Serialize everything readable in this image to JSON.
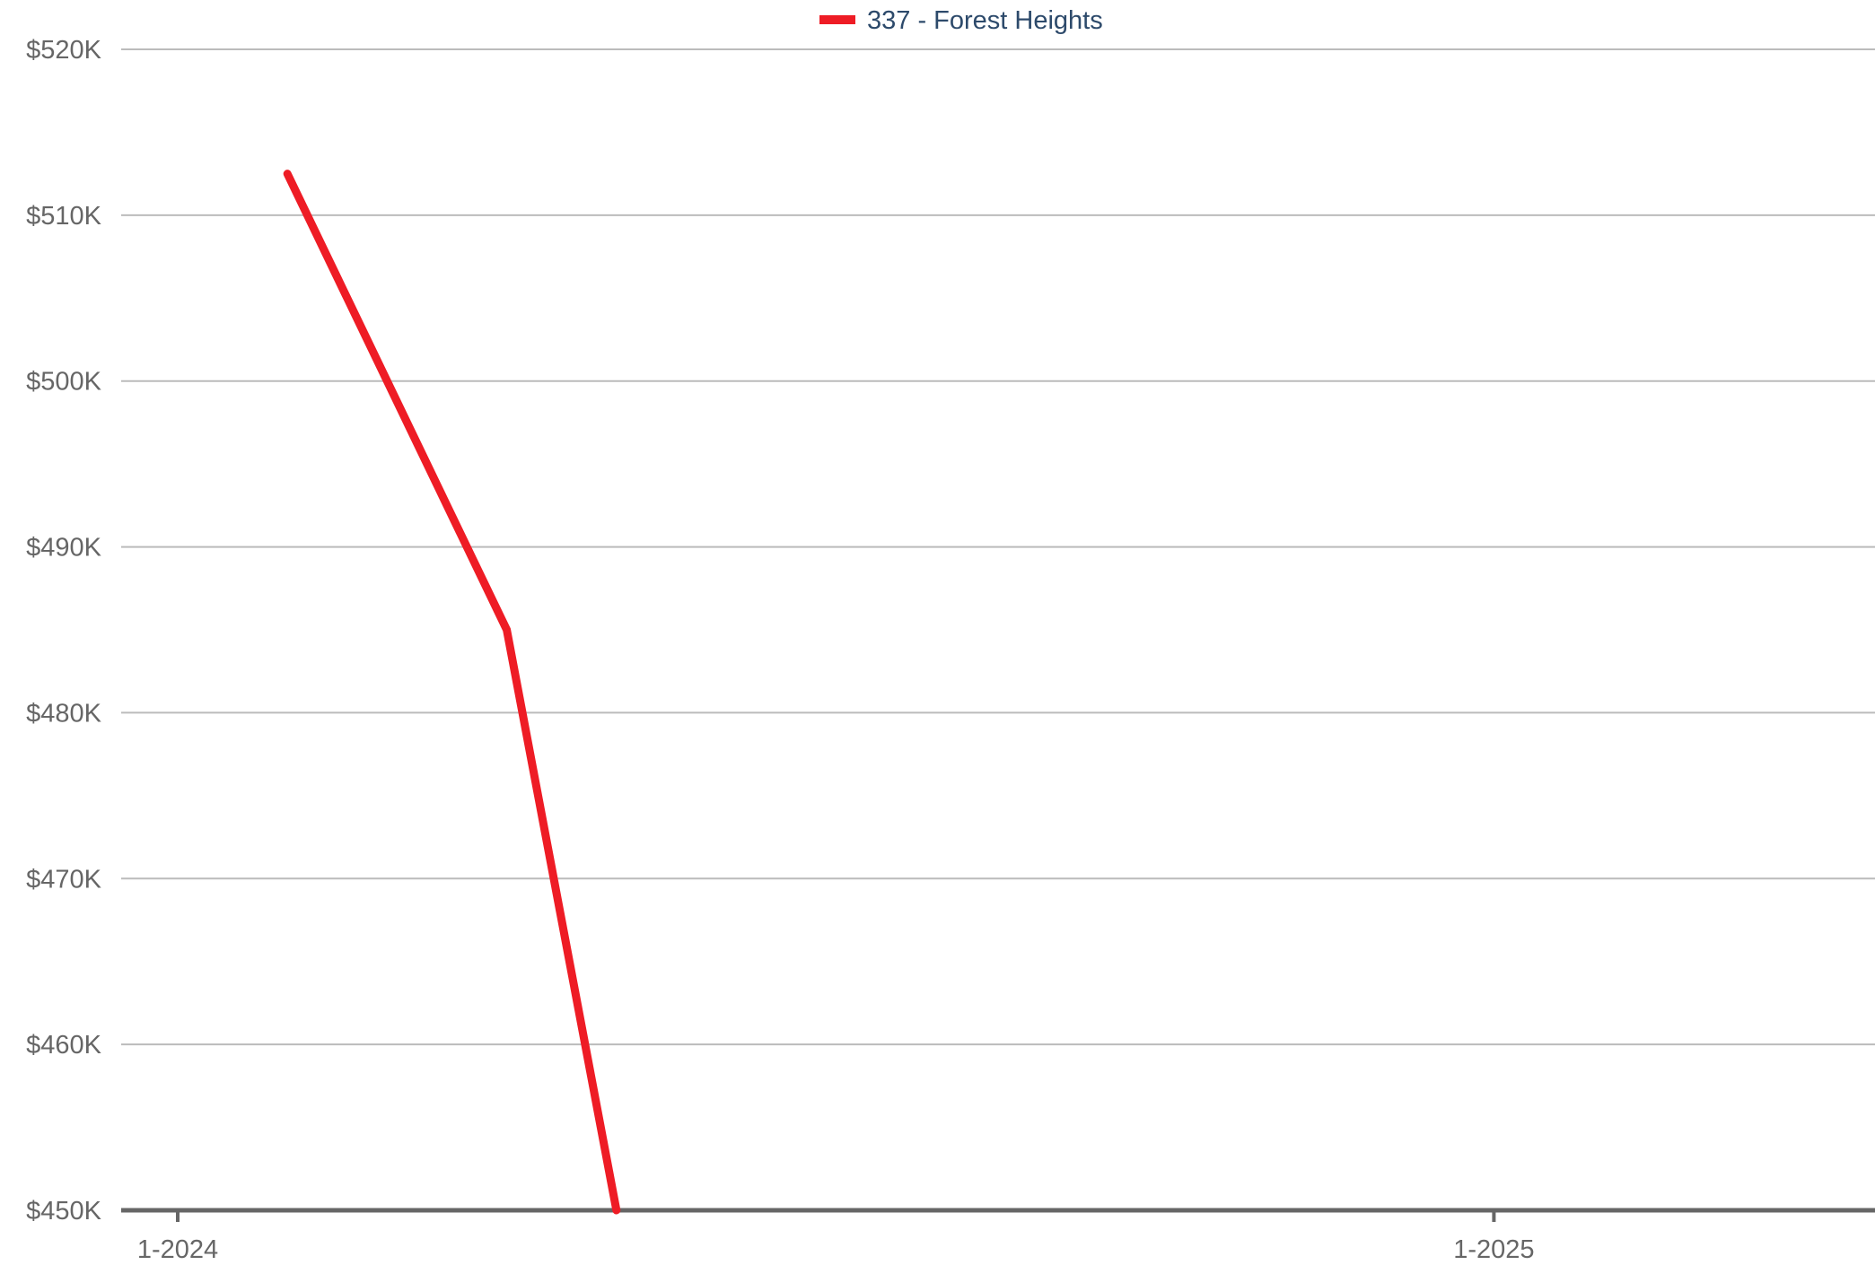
{
  "chart_data": {
    "type": "line",
    "x_range": [
      "2023-12",
      "2025-05"
    ],
    "x_ticks": [
      {
        "date": "2024-01",
        "label": "1-2024"
      },
      {
        "date": "2025-01",
        "label": "1-2025"
      }
    ],
    "ylim": [
      450000,
      520000
    ],
    "y_ticks": [
      {
        "value": 450000,
        "label": "$450K"
      },
      {
        "value": 460000,
        "label": "$460K"
      },
      {
        "value": 470000,
        "label": "$470K"
      },
      {
        "value": 480000,
        "label": "$480K"
      },
      {
        "value": 490000,
        "label": "$490K"
      },
      {
        "value": 500000,
        "label": "$500K"
      },
      {
        "value": 510000,
        "label": "$510K"
      },
      {
        "value": 520000,
        "label": "$520K"
      }
    ],
    "grid": true,
    "legend_position": "top-center",
    "series": [
      {
        "name": "337 - Forest Heights",
        "color": "#ee1c25",
        "points": [
          {
            "x": "2024-02",
            "y": 512500
          },
          {
            "x": "2024-04",
            "y": 485000
          },
          {
            "x": "2024-05",
            "y": 450000
          }
        ]
      }
    ]
  },
  "colors": {
    "grid": "#bbbbbb",
    "axis": "#666666"
  }
}
